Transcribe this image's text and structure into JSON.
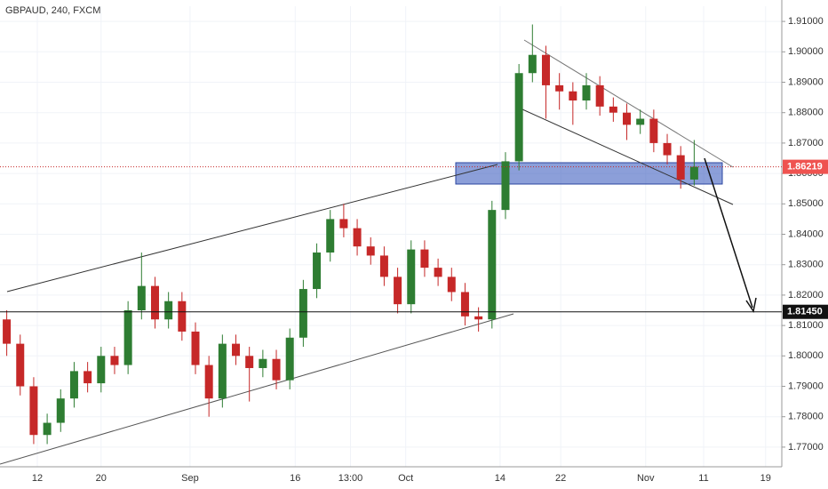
{
  "chart_data": {
    "type": "candlestick",
    "title": "GBPAUD, 240, FXCM",
    "up_color": "#2e7d32",
    "down_color": "#c62828",
    "xlim": [
      0,
      58
    ],
    "ylim": [
      1.765,
      1.915
    ],
    "xticks": [
      {
        "value": 2.77,
        "label": "12"
      },
      {
        "value": 7.5,
        "label": "20"
      },
      {
        "value": 14.1,
        "label": "Sep"
      },
      {
        "value": 21.9,
        "label": "16"
      },
      {
        "value": 26,
        "label": "13:00"
      },
      {
        "value": 30.1,
        "label": "Oct"
      },
      {
        "value": 37.1,
        "label": "14"
      },
      {
        "value": 41.6,
        "label": "22"
      },
      {
        "value": 47.9,
        "label": "Nov"
      },
      {
        "value": 52.2,
        "label": "11"
      },
      {
        "value": 56.8,
        "label": "19"
      }
    ],
    "yticks": [
      {
        "value": 1.77,
        "label": "1.77000"
      },
      {
        "value": 1.78,
        "label": "1.78000"
      },
      {
        "value": 1.79,
        "label": "1.79000"
      },
      {
        "value": 1.8,
        "label": "1.80000"
      },
      {
        "value": 1.81,
        "label": "1.81000"
      },
      {
        "value": 1.82,
        "label": "1.82000"
      },
      {
        "value": 1.83,
        "label": "1.83000"
      },
      {
        "value": 1.84,
        "label": "1.84000"
      },
      {
        "value": 1.85,
        "label": "1.85000"
      },
      {
        "value": 1.86,
        "label": "1.86000"
      },
      {
        "value": 1.87,
        "label": "1.87000"
      },
      {
        "value": 1.88,
        "label": "1.88000"
      },
      {
        "value": 1.89,
        "label": "1.89000"
      },
      {
        "value": 1.9,
        "label": "1.90000"
      },
      {
        "value": 1.91,
        "label": "1.91000"
      }
    ],
    "level": {
      "value": 1.8145,
      "label": "1.81450"
    },
    "last_price": {
      "value": 1.86219,
      "label": "1.86219"
    },
    "candles": [
      {
        "o": 1.812,
        "h": 1.815,
        "l": 1.8,
        "c": 1.804
      },
      {
        "o": 1.804,
        "h": 1.807,
        "l": 1.787,
        "c": 1.79
      },
      {
        "o": 1.79,
        "h": 1.793,
        "l": 1.771,
        "c": 1.774
      },
      {
        "o": 1.774,
        "h": 1.781,
        "l": 1.771,
        "c": 1.778
      },
      {
        "o": 1.778,
        "h": 1.789,
        "l": 1.775,
        "c": 1.786
      },
      {
        "o": 1.786,
        "h": 1.798,
        "l": 1.783,
        "c": 1.795
      },
      {
        "o": 1.795,
        "h": 1.798,
        "l": 1.788,
        "c": 1.791
      },
      {
        "o": 1.791,
        "h": 1.803,
        "l": 1.788,
        "c": 1.8
      },
      {
        "o": 1.8,
        "h": 1.803,
        "l": 1.794,
        "c": 1.797
      },
      {
        "o": 1.797,
        "h": 1.818,
        "l": 1.794,
        "c": 1.815
      },
      {
        "o": 1.815,
        "h": 1.834,
        "l": 1.812,
        "c": 1.823
      },
      {
        "o": 1.823,
        "h": 1.826,
        "l": 1.809,
        "c": 1.812
      },
      {
        "o": 1.812,
        "h": 1.821,
        "l": 1.809,
        "c": 1.818
      },
      {
        "o": 1.818,
        "h": 1.821,
        "l": 1.805,
        "c": 1.808
      },
      {
        "o": 1.808,
        "h": 1.811,
        "l": 1.794,
        "c": 1.797
      },
      {
        "o": 1.797,
        "h": 1.8,
        "l": 1.78,
        "c": 1.786
      },
      {
        "o": 1.786,
        "h": 1.807,
        "l": 1.783,
        "c": 1.804
      },
      {
        "o": 1.804,
        "h": 1.807,
        "l": 1.797,
        "c": 1.8
      },
      {
        "o": 1.8,
        "h": 1.803,
        "l": 1.785,
        "c": 1.796
      },
      {
        "o": 1.796,
        "h": 1.802,
        "l": 1.793,
        "c": 1.799
      },
      {
        "o": 1.799,
        "h": 1.802,
        "l": 1.789,
        "c": 1.792
      },
      {
        "o": 1.792,
        "h": 1.809,
        "l": 1.789,
        "c": 1.806
      },
      {
        "o": 1.806,
        "h": 1.825,
        "l": 1.803,
        "c": 1.822
      },
      {
        "o": 1.822,
        "h": 1.837,
        "l": 1.819,
        "c": 1.834
      },
      {
        "o": 1.834,
        "h": 1.848,
        "l": 1.831,
        "c": 1.845
      },
      {
        "o": 1.845,
        "h": 1.85,
        "l": 1.839,
        "c": 1.842
      },
      {
        "o": 1.842,
        "h": 1.845,
        "l": 1.833,
        "c": 1.836
      },
      {
        "o": 1.836,
        "h": 1.839,
        "l": 1.83,
        "c": 1.833
      },
      {
        "o": 1.833,
        "h": 1.836,
        "l": 1.823,
        "c": 1.826
      },
      {
        "o": 1.826,
        "h": 1.829,
        "l": 1.814,
        "c": 1.817
      },
      {
        "o": 1.817,
        "h": 1.838,
        "l": 1.814,
        "c": 1.835
      },
      {
        "o": 1.835,
        "h": 1.838,
        "l": 1.826,
        "c": 1.829
      },
      {
        "o": 1.829,
        "h": 1.832,
        "l": 1.823,
        "c": 1.826
      },
      {
        "o": 1.826,
        "h": 1.829,
        "l": 1.818,
        "c": 1.821
      },
      {
        "o": 1.821,
        "h": 1.824,
        "l": 1.81,
        "c": 1.813
      },
      {
        "o": 1.813,
        "h": 1.816,
        "l": 1.808,
        "c": 1.812
      },
      {
        "o": 1.812,
        "h": 1.851,
        "l": 1.809,
        "c": 1.848
      },
      {
        "o": 1.848,
        "h": 1.867,
        "l": 1.845,
        "c": 1.864
      },
      {
        "o": 1.864,
        "h": 1.896,
        "l": 1.861,
        "c": 1.893
      },
      {
        "o": 1.893,
        "h": 1.909,
        "l": 1.89,
        "c": 1.899
      },
      {
        "o": 1.899,
        "h": 1.902,
        "l": 1.878,
        "c": 1.889
      },
      {
        "o": 1.889,
        "h": 1.893,
        "l": 1.881,
        "c": 1.887
      },
      {
        "o": 1.887,
        "h": 1.89,
        "l": 1.876,
        "c": 1.884
      },
      {
        "o": 1.884,
        "h": 1.893,
        "l": 1.881,
        "c": 1.889
      },
      {
        "o": 1.889,
        "h": 1.892,
        "l": 1.879,
        "c": 1.882
      },
      {
        "o": 1.882,
        "h": 1.885,
        "l": 1.877,
        "c": 1.88
      },
      {
        "o": 1.88,
        "h": 1.883,
        "l": 1.871,
        "c": 1.876
      },
      {
        "o": 1.876,
        "h": 1.881,
        "l": 1.873,
        "c": 1.878
      },
      {
        "o": 1.878,
        "h": 1.881,
        "l": 1.867,
        "c": 1.87
      },
      {
        "o": 1.87,
        "h": 1.873,
        "l": 1.863,
        "c": 1.866
      },
      {
        "o": 1.866,
        "h": 1.869,
        "l": 1.855,
        "c": 1.858
      },
      {
        "o": 1.858,
        "h": 1.871,
        "l": 1.856,
        "c": 1.86219
      }
    ]
  }
}
